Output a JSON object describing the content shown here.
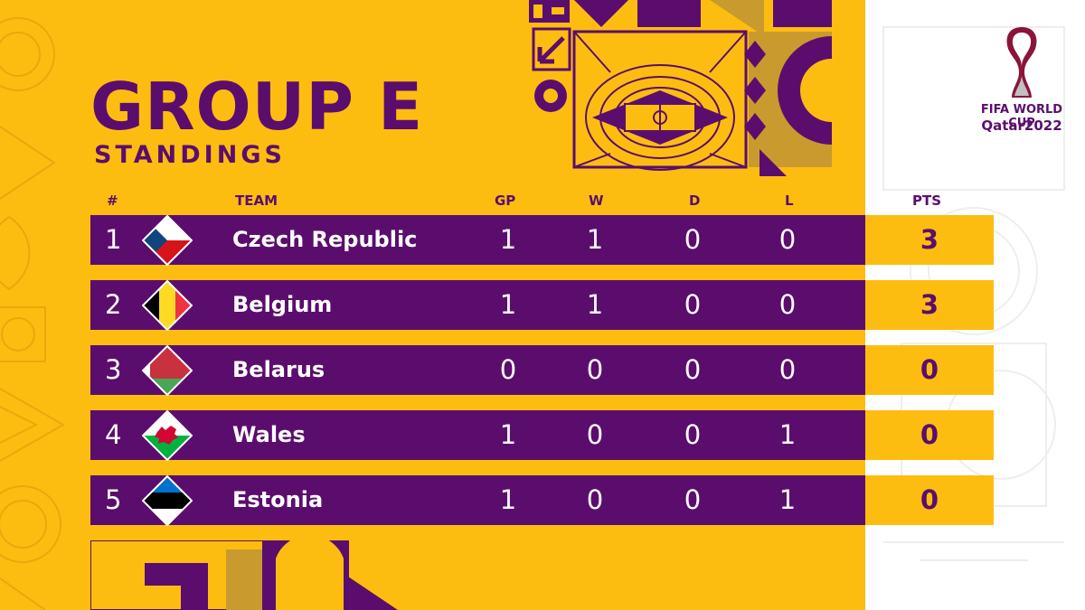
{
  "title": "GROUP E",
  "subtitle": "STANDINGS",
  "headers": {
    "pos": "#",
    "team": "TEAM",
    "gp": "GP",
    "w": "W",
    "d": "D",
    "l": "L",
    "pts": "PTS"
  },
  "rows": [
    {
      "pos": "1",
      "team": "Czech Republic",
      "flag": "czech-republic-flag",
      "gp": "1",
      "w": "1",
      "d": "0",
      "l": "0",
      "pts": "3"
    },
    {
      "pos": "2",
      "team": "Belgium",
      "flag": "belgium-flag",
      "gp": "1",
      "w": "1",
      "d": "0",
      "l": "0",
      "pts": "3"
    },
    {
      "pos": "3",
      "team": "Belarus",
      "flag": "belarus-flag",
      "gp": "0",
      "w": "0",
      "d": "0",
      "l": "0",
      "pts": "0"
    },
    {
      "pos": "4",
      "team": "Wales",
      "flag": "wales-flag",
      "gp": "1",
      "w": "0",
      "d": "0",
      "l": "1",
      "pts": "0"
    },
    {
      "pos": "5",
      "team": "Estonia",
      "flag": "estonia-flag",
      "gp": "1",
      "w": "0",
      "d": "0",
      "l": "1",
      "pts": "0"
    }
  ],
  "logo": {
    "line1": "FIFA WORLD CUP",
    "line2": "Qatar2022"
  },
  "colors": {
    "purple": "#5b0d6e",
    "gold": "#fdbd10",
    "white": "#ffffff",
    "maroon": "#8a1538"
  }
}
